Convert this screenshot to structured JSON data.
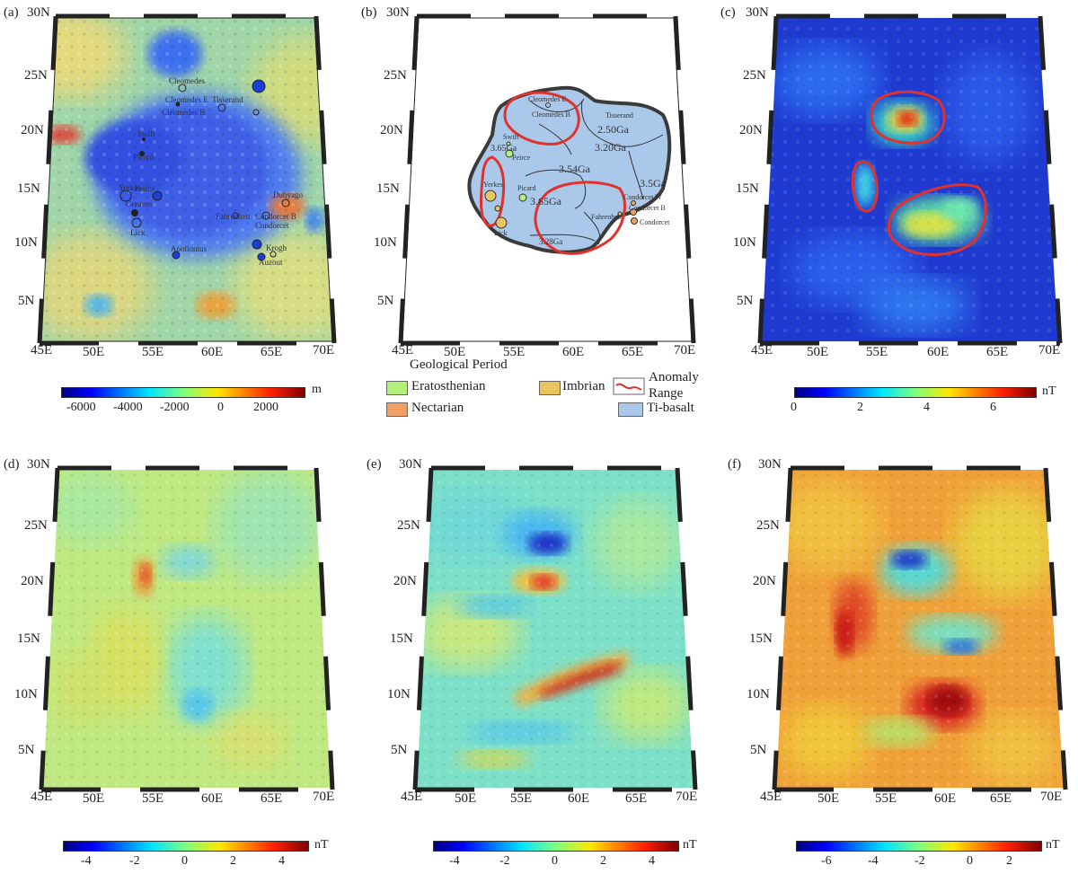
{
  "figure": {
    "panels": [
      {
        "id": "a",
        "label": "(a)",
        "lat_ticks": [
          "30N",
          "25N",
          "20N",
          "15N",
          "10N",
          "5N"
        ],
        "lon_ticks": [
          "45E",
          "50E",
          "55E",
          "60E",
          "65E",
          "70E"
        ],
        "colorbar": {
          "ticks": [
            "-6000",
            "-4000",
            "-2000",
            "0",
            "2000"
          ],
          "unit": "m",
          "range": [
            -7000,
            3500
          ]
        },
        "crater_labels": [
          "Cleomedes",
          "Cleomedes E",
          "Cleomedes B",
          "Tisserand",
          "Yerkes",
          "Peirce",
          "Lick",
          "Swift",
          "Picard",
          "Greaves",
          "Condorcet",
          "Condorcet B",
          "Fahrenheit",
          "Krogh",
          "Auzout",
          "Dubyago",
          "Apollonius"
        ]
      },
      {
        "id": "b",
        "label": "(b)",
        "lat_ticks": [
          "30N",
          "25N",
          "20N",
          "15N",
          "10N",
          "5N"
        ],
        "lon_ticks": [
          "45E",
          "50E",
          "55E",
          "60E",
          "65E",
          "70E"
        ],
        "age_labels": [
          "2.50Ga",
          "3.20Ga",
          "3.54Ga",
          "3.5Ga",
          "3.65Ga",
          "3.65Ga",
          "3.28Ga"
        ],
        "crater_labels": [
          "Cleomedes E",
          "Cleomedes B",
          "Tisserand",
          "Swift",
          "Peirce",
          "Yerkes",
          "Picard",
          "Lick",
          "Fahrenheit",
          "Condorcet W",
          "Condorcet B",
          "Condorcet"
        ],
        "legend": {
          "title": "Geological Period",
          "items": [
            {
              "label": "Eratosthenian",
              "color": "#b4f07a"
            },
            {
              "label": "Imbrian",
              "color": "#e9c55f"
            },
            {
              "label": "Nectarian",
              "color": "#f0a067"
            },
            {
              "label": "Anomaly",
              "label2": "Range",
              "color": "#e0312b"
            },
            {
              "label": "Ti-basalt",
              "color": "#aac8ea"
            }
          ]
        }
      },
      {
        "id": "c",
        "label": "(c)",
        "lat_ticks": [
          "30N",
          "25N",
          "20N",
          "15N",
          "10N",
          "5N"
        ],
        "lon_ticks": [
          "45E",
          "50E",
          "55E",
          "60E",
          "65E",
          "70E"
        ],
        "colorbar": {
          "ticks": [
            "0",
            "2",
            "4",
            "6"
          ],
          "unit": "nT",
          "range": [
            0,
            7.2
          ]
        }
      },
      {
        "id": "d",
        "label": "(d)",
        "lat_ticks": [
          "30N",
          "25N",
          "20N",
          "15N",
          "10N",
          "5N"
        ],
        "lon_ticks": [
          "45E",
          "50E",
          "55E",
          "60E",
          "65E",
          "70E"
        ],
        "colorbar": {
          "ticks": [
            "-4",
            "-2",
            "0",
            "2",
            "4"
          ],
          "unit": "nT",
          "range": [
            -5,
            5
          ]
        }
      },
      {
        "id": "e",
        "label": "(e)",
        "lat_ticks": [
          "30N",
          "25N",
          "20N",
          "15N",
          "10N",
          "5N"
        ],
        "lon_ticks": [
          "45E",
          "50E",
          "55E",
          "60E",
          "65E",
          "70E"
        ],
        "colorbar": {
          "ticks": [
            "-4",
            "-2",
            "0",
            "2",
            "4"
          ],
          "unit": "nT",
          "range": [
            -5,
            5
          ]
        }
      },
      {
        "id": "f",
        "label": "(f)",
        "lat_ticks": [
          "30N",
          "25N",
          "20N",
          "15N",
          "10N",
          "5N"
        ],
        "lon_ticks": [
          "45E",
          "50E",
          "55E",
          "60E",
          "65E",
          "70E"
        ],
        "colorbar": {
          "ticks": [
            "-6",
            "-4",
            "-2",
            "0",
            "2"
          ],
          "unit": "nT",
          "range": [
            -7,
            3.5
          ]
        }
      }
    ]
  }
}
